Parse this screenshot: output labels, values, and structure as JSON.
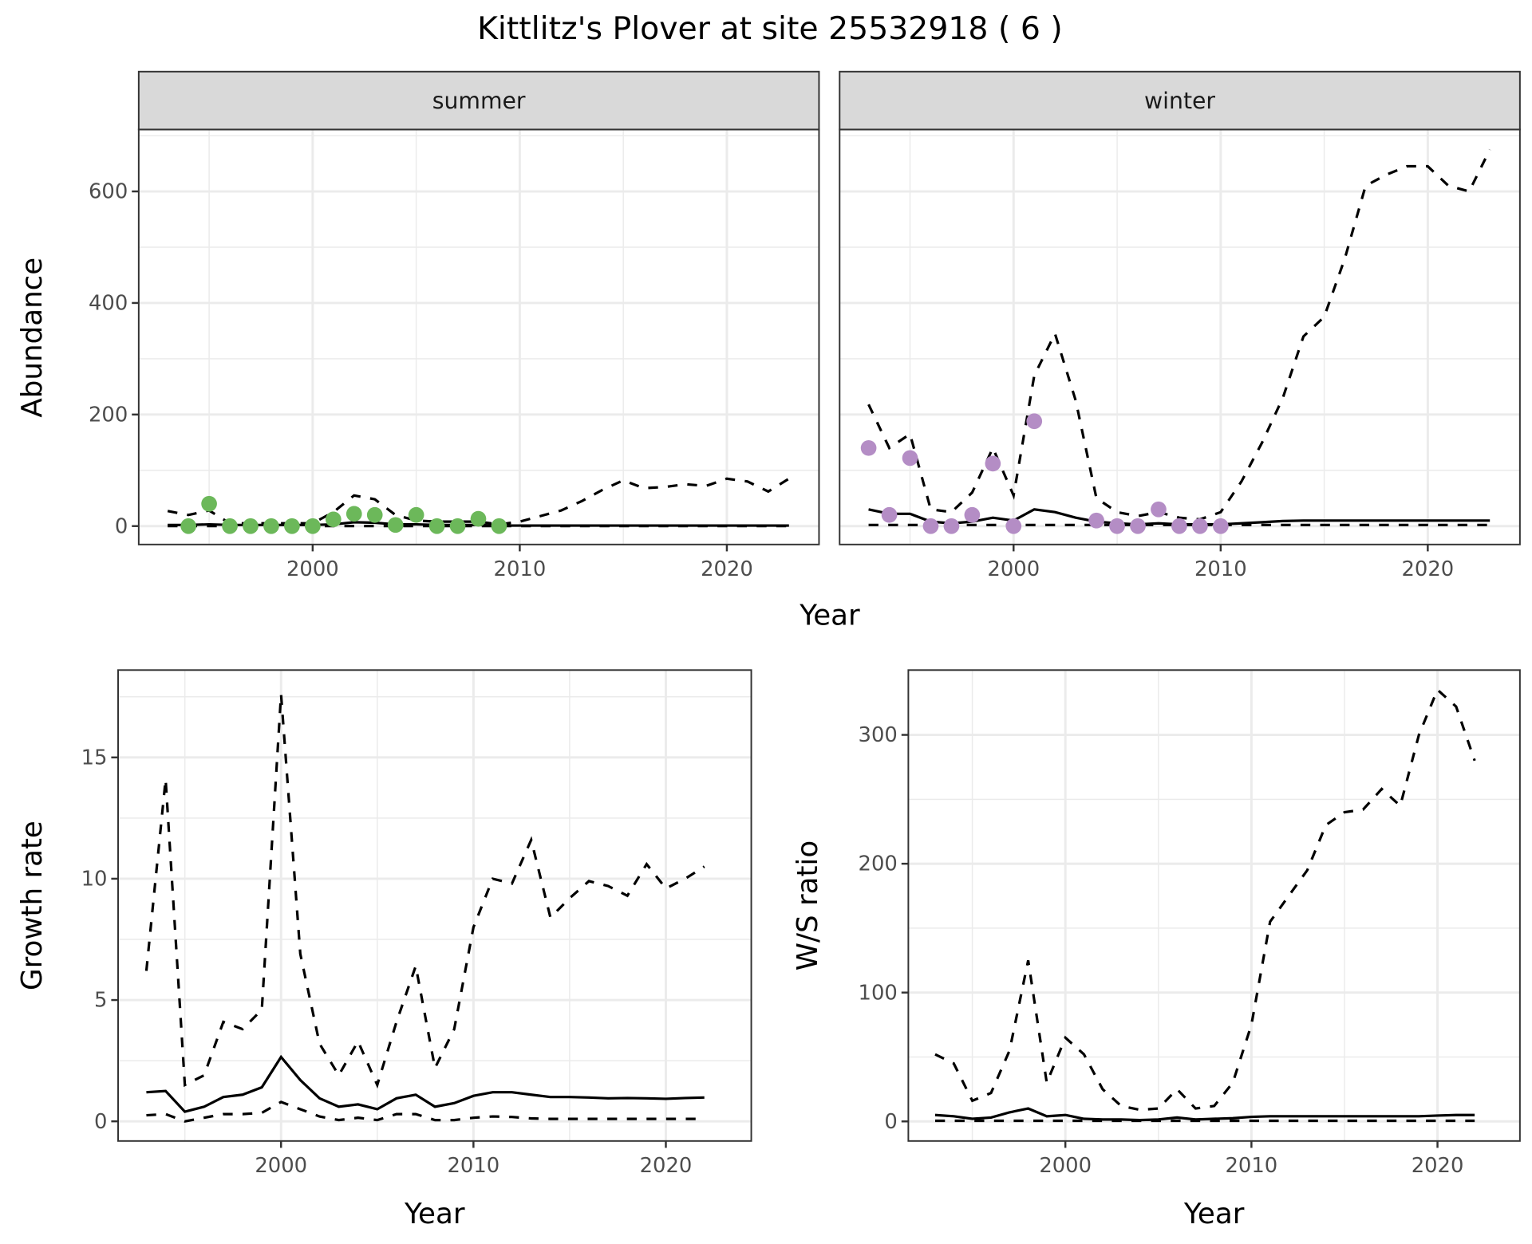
{
  "title": "Kittlitz's Plover at site 25532918 ( 6 )",
  "colors": {
    "summer_points": "#6cb85a",
    "winter_points": "#b48dc5",
    "lines": "#000000",
    "strip_bg": "#d9d9d9",
    "grid": "#ebebeb"
  },
  "chart_data": [
    {
      "type": "line",
      "facet": "summer",
      "xlabel": "Year",
      "ylabel": "Abundance",
      "xlim": [
        1991.6,
        2024.45
      ],
      "ylim": [
        -33,
        711
      ],
      "xticks": [
        2000,
        2010,
        2020
      ],
      "yticks": [
        0,
        200,
        400,
        600
      ],
      "grid": true,
      "x": [
        1993,
        1994,
        1995,
        1996,
        1997,
        1998,
        1999,
        2000,
        2001,
        2002,
        2003,
        2004,
        2005,
        2006,
        2007,
        2008,
        2009,
        2010,
        2011,
        2012,
        2013,
        2014,
        2015,
        2016,
        2017,
        2018,
        2019,
        2020,
        2021,
        2022,
        2023
      ],
      "upper": [
        27,
        20,
        28,
        5,
        5,
        5,
        5,
        5,
        25,
        55,
        48,
        20,
        10,
        8,
        8,
        8,
        3,
        8,
        18,
        28,
        45,
        65,
        82,
        68,
        70,
        75,
        72,
        85,
        80,
        62,
        85
      ],
      "median": [
        2,
        2,
        3,
        2,
        2,
        2,
        2,
        2,
        3,
        7,
        6,
        3,
        3,
        2,
        2,
        2,
        1,
        1,
        1,
        1,
        1,
        1,
        1,
        1,
        1,
        1,
        1,
        1,
        1,
        1,
        1
      ],
      "lower": [
        0,
        0,
        0,
        0,
        0,
        0,
        0,
        0,
        0,
        0,
        0,
        0,
        0,
        0,
        0,
        0,
        0,
        0,
        0,
        0,
        0,
        0,
        0,
        0,
        0,
        0,
        0,
        0,
        0,
        0,
        0
      ],
      "points": {
        "x": [
          1994,
          1995,
          1996,
          1997,
          1998,
          1999,
          2000,
          2001,
          2002,
          2003,
          2004,
          2005,
          2006,
          2007,
          2008,
          2009
        ],
        "y": [
          0,
          40,
          0,
          0,
          0,
          0,
          0,
          12,
          22,
          20,
          2,
          20,
          0,
          0,
          13,
          0
        ]
      }
    },
    {
      "type": "line",
      "facet": "winter",
      "xlabel": "Year",
      "ylabel": "Abundance",
      "xlim": [
        1991.6,
        2024.45
      ],
      "ylim": [
        -33,
        711
      ],
      "xticks": [
        2000,
        2010,
        2020
      ],
      "yticks": [
        0,
        200,
        400,
        600
      ],
      "grid": true,
      "x": [
        1993,
        1994,
        1995,
        1996,
        1997,
        1998,
        1999,
        2000,
        2001,
        2002,
        2003,
        2004,
        2005,
        2006,
        2007,
        2008,
        2009,
        2010,
        2011,
        2012,
        2013,
        2014,
        2015,
        2016,
        2017,
        2018,
        2019,
        2020,
        2021,
        2022,
        2023
      ],
      "upper": [
        218,
        140,
        165,
        30,
        25,
        60,
        140,
        55,
        270,
        345,
        225,
        50,
        25,
        18,
        25,
        15,
        12,
        25,
        80,
        150,
        230,
        340,
        375,
        480,
        610,
        630,
        645,
        645,
        610,
        600,
        675
      ],
      "median": [
        30,
        22,
        22,
        8,
        5,
        8,
        15,
        10,
        30,
        25,
        15,
        8,
        5,
        3,
        5,
        3,
        3,
        3,
        5,
        7,
        9,
        10,
        10,
        10,
        10,
        10,
        10,
        10,
        10,
        10,
        10
      ],
      "lower": [
        2,
        2,
        2,
        2,
        2,
        2,
        2,
        2,
        2,
        2,
        2,
        2,
        2,
        2,
        2,
        2,
        2,
        2,
        2,
        2,
        2,
        2,
        2,
        2,
        2,
        2,
        2,
        2,
        2,
        2,
        2
      ],
      "points": {
        "x": [
          1993,
          1994,
          1995,
          1996,
          1997,
          1998,
          1999,
          2000,
          2001,
          2004,
          2005,
          2006,
          2007,
          2008,
          2009,
          2010
        ],
        "y": [
          140,
          20,
          122,
          0,
          0,
          20,
          112,
          0,
          188,
          10,
          0,
          0,
          30,
          0,
          0,
          0
        ]
      }
    },
    {
      "type": "line",
      "xlabel": "Year",
      "ylabel": "Growth rate",
      "xlim": [
        1991.53,
        2024.44
      ],
      "ylim": [
        -0.81,
        18.6
      ],
      "xticks": [
        2000,
        2010,
        2020
      ],
      "yticks": [
        0,
        5,
        10,
        15
      ],
      "grid": true,
      "x": [
        1993,
        1994,
        1995,
        1996,
        1997,
        1998,
        1999,
        2000,
        2001,
        2002,
        2003,
        2004,
        2005,
        2006,
        2007,
        2008,
        2009,
        2010,
        2011,
        2012,
        2013,
        2014,
        2015,
        2016,
        2017,
        2018,
        2019,
        2020,
        2021,
        2022
      ],
      "upper": [
        6.2,
        14.1,
        1.5,
        1.9,
        4.1,
        3.8,
        4.6,
        17.6,
        6.9,
        3.2,
        1.9,
        3.3,
        1.5,
        4.1,
        6.4,
        2.2,
        3.8,
        8.0,
        10.0,
        9.8,
        11.6,
        8.4,
        9.2,
        9.9,
        9.7,
        9.3,
        10.6,
        9.6,
        10.0,
        10.5
      ],
      "median": [
        1.2,
        1.25,
        0.4,
        0.6,
        1.0,
        1.1,
        1.4,
        2.65,
        1.7,
        0.95,
        0.6,
        0.7,
        0.5,
        0.95,
        1.1,
        0.6,
        0.75,
        1.05,
        1.2,
        1.2,
        1.1,
        1.0,
        1.0,
        0.98,
        0.95,
        0.96,
        0.95,
        0.93,
        0.96,
        0.98
      ],
      "lower": [
        0.25,
        0.3,
        0.0,
        0.15,
        0.3,
        0.3,
        0.35,
        0.8,
        0.5,
        0.2,
        0.05,
        0.15,
        0.05,
        0.3,
        0.3,
        0.05,
        0.05,
        0.15,
        0.2,
        0.18,
        0.12,
        0.1,
        0.1,
        0.1,
        0.1,
        0.1,
        0.1,
        0.1,
        0.1,
        0.1
      ]
    },
    {
      "type": "line",
      "xlabel": "Year",
      "ylabel": "W/S ratio",
      "xlim": [
        1991.56,
        2024.43
      ],
      "ylim": [
        -15.2,
        350.3
      ],
      "xticks": [
        2000,
        2010,
        2020
      ],
      "yticks": [
        0,
        100,
        200,
        300
      ],
      "grid": true,
      "x": [
        1993,
        1994,
        1995,
        1996,
        1997,
        1998,
        1999,
        2000,
        2001,
        2002,
        2003,
        2004,
        2005,
        2006,
        2007,
        2008,
        2009,
        2010,
        2011,
        2012,
        2013,
        2014,
        2015,
        2016,
        2017,
        2018,
        2019,
        2020,
        2021,
        2022
      ],
      "upper": [
        52,
        45,
        16,
        22,
        55,
        125,
        30,
        65,
        52,
        25,
        12,
        9,
        10,
        25,
        10,
        12,
        30,
        75,
        155,
        175,
        195,
        230,
        240,
        242,
        258,
        245,
        300,
        335,
        322,
        280
      ],
      "median": [
        5,
        4,
        2,
        3,
        7,
        10,
        4,
        5,
        2,
        1.5,
        1.5,
        1,
        1.5,
        3,
        1.5,
        2,
        2.5,
        3.5,
        4,
        4,
        4,
        4,
        4,
        4,
        4,
        4,
        4,
        4.5,
        5,
        5
      ],
      "lower": [
        0.5,
        0.5,
        0.5,
        0.5,
        0.5,
        0.5,
        0.5,
        0.5,
        0.5,
        0.5,
        0.5,
        0.5,
        0.5,
        0.5,
        0.5,
        0.5,
        0.5,
        0.5,
        0.5,
        0.5,
        0.5,
        0.5,
        0.5,
        0.5,
        0.5,
        0.5,
        0.5,
        0.5,
        0.5,
        0.5
      ]
    }
  ]
}
